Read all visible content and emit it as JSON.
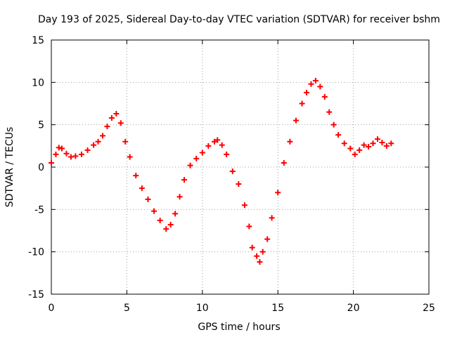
{
  "chart_data": {
    "type": "scatter",
    "title": "Day 193 of 2025, Sidereal Day-to-day VTEC variation (SDTVAR) for receiver bshm",
    "xlabel": "GPS time / hours",
    "ylabel": "SDTVAR / TECUs",
    "xlim": [
      0,
      25
    ],
    "ylim": [
      -15,
      15
    ],
    "xticks": [
      0,
      5,
      10,
      15,
      20,
      25
    ],
    "yticks": [
      -15,
      -10,
      -5,
      0,
      5,
      10,
      15
    ],
    "grid": true,
    "marker": "+",
    "color": "#ff0000",
    "series": [
      {
        "name": "SDTVAR",
        "x": [
          0.0,
          0.3,
          0.5,
          0.7,
          1.0,
          1.3,
          1.6,
          2.0,
          2.4,
          2.8,
          3.1,
          3.4,
          3.7,
          4.0,
          4.3,
          4.6,
          4.9,
          5.2,
          5.6,
          6.0,
          6.4,
          6.8,
          7.2,
          7.6,
          7.9,
          8.2,
          8.5,
          8.8,
          9.2,
          9.6,
          10.0,
          10.4,
          10.8,
          11.0,
          11.3,
          11.6,
          12.0,
          12.4,
          12.8,
          13.1,
          13.3,
          13.6,
          13.8,
          14.0,
          14.3,
          14.6,
          15.0,
          15.4,
          15.8,
          16.2,
          16.6,
          16.9,
          17.2,
          17.5,
          17.8,
          18.1,
          18.4,
          18.7,
          19.0,
          19.4,
          19.8,
          20.1,
          20.4,
          20.7,
          21.0,
          21.3,
          21.6,
          21.9,
          22.2,
          22.5
        ],
        "y": [
          0.5,
          1.5,
          2.3,
          2.2,
          1.6,
          1.2,
          1.3,
          1.5,
          2.0,
          2.6,
          3.0,
          3.7,
          4.8,
          5.8,
          6.3,
          5.2,
          3.0,
          1.2,
          -1.0,
          -2.5,
          -3.8,
          -5.2,
          -6.3,
          -7.3,
          -6.8,
          -5.5,
          -3.5,
          -1.5,
          0.2,
          1.0,
          1.7,
          2.5,
          3.0,
          3.2,
          2.6,
          1.5,
          -0.5,
          -2.0,
          -4.5,
          -7.0,
          -9.5,
          -10.5,
          -11.2,
          -10.0,
          -8.5,
          -6.0,
          -3.0,
          0.5,
          3.0,
          5.5,
          7.5,
          8.8,
          9.8,
          10.2,
          9.5,
          8.3,
          6.5,
          5.0,
          3.8,
          2.8,
          2.2,
          1.5,
          2.0,
          2.6,
          2.4,
          2.8,
          3.3,
          2.9,
          2.5,
          2.8
        ]
      }
    ]
  }
}
